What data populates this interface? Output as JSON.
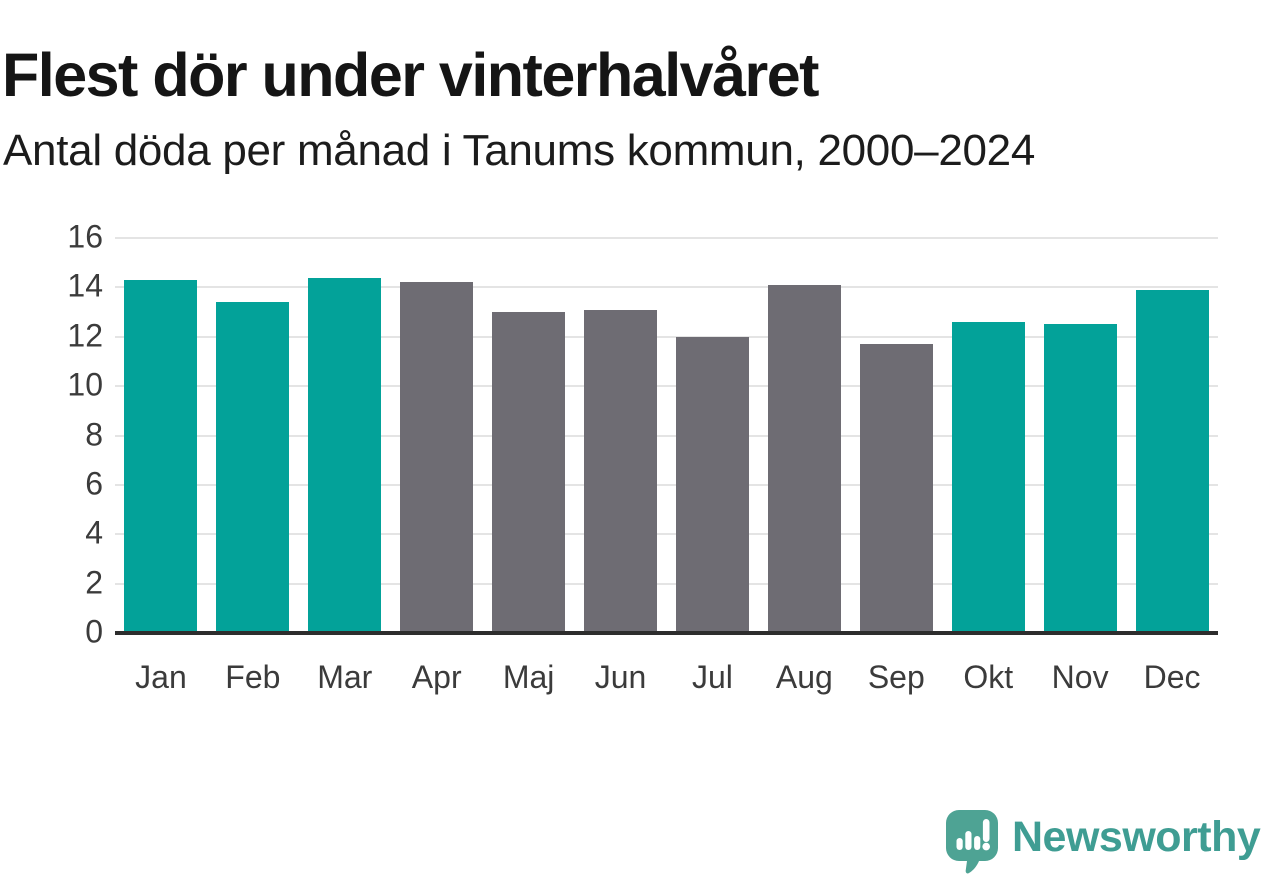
{
  "header": {},
  "chart_data": {
    "type": "bar",
    "title": "Flest dör under vinterhalvåret",
    "subtitle": "Antal döda per månad i Tanums kommun, 2000–2024",
    "categories": [
      "Jan",
      "Feb",
      "Mar",
      "Apr",
      "Maj",
      "Jun",
      "Jul",
      "Aug",
      "Sep",
      "Okt",
      "Nov",
      "Dec"
    ],
    "values": [
      14.3,
      13.4,
      14.4,
      14.2,
      13.0,
      13.1,
      12.0,
      14.1,
      11.7,
      12.6,
      12.5,
      13.9
    ],
    "highlighted": [
      true,
      true,
      true,
      false,
      false,
      false,
      false,
      false,
      false,
      true,
      true,
      true
    ],
    "highlight_meaning": "winter half-year months shown in teal",
    "colors": {
      "highlight": "#03A299",
      "base": "#6E6C73"
    },
    "xlabel": "",
    "ylabel": "",
    "ylim": [
      0,
      16
    ],
    "yticks": [
      0,
      2,
      4,
      6,
      8,
      10,
      12,
      14,
      16
    ],
    "grid": "horizontal",
    "legend": "none"
  },
  "footer": {
    "brand": "Newsworthy",
    "brand_color": "#3F9D93",
    "icon": "newsworthy-speech-bubble-bar-chart-icon",
    "icon_color": "#4EA394"
  }
}
